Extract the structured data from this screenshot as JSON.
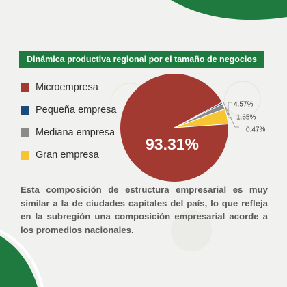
{
  "title": "Dinámica productiva regional por el tamaño de negocios",
  "colors": {
    "green": "#1e7a3e",
    "micro": "#a23a32",
    "pequena": "#1e4a7a",
    "mediana": "#8a8a8a",
    "gran": "#f7c531"
  },
  "chart_data": {
    "type": "pie",
    "title": "Dinámica productiva regional por el tamaño de negocios",
    "categories": [
      "Microempresa",
      "Pequeña empresa",
      "Mediana empresa",
      "Gran empresa"
    ],
    "values": [
      93.31,
      0.47,
      1.65,
      4.57
    ],
    "value_labels": [
      "93.31%",
      "0.47%",
      "1.65%",
      "4.57%"
    ],
    "legend_position": "left"
  },
  "legend": [
    {
      "label": "Microempresa",
      "color": "#a23a32"
    },
    {
      "label": "Pequeña empresa",
      "color": "#1e4a7a"
    },
    {
      "label": "Mediana empresa",
      "color": "#8a8a8a"
    },
    {
      "label": "Gran empresa",
      "color": "#f7c531"
    }
  ],
  "description": "Esta composición de estructura empresarial es muy similar a la de ciudades capitales del país, lo que refleja en la subregión una composición empresarial acorde a los promedios nacionales."
}
